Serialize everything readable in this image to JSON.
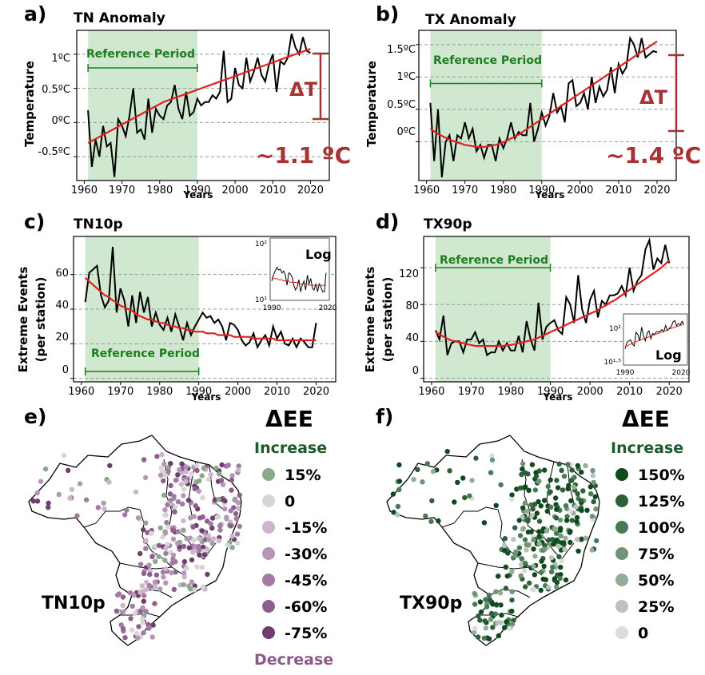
{
  "colors": {
    "red": "#e02020",
    "dark_red": "#a83232",
    "green_band": "#cfe8cf",
    "green_text": "#1e7d1e",
    "dark_green": "#1c5a2c",
    "purple_text": "#8a5a8a"
  },
  "panels": [
    {
      "id": "a",
      "label": "a)",
      "title": "TN Anomaly",
      "ylabel": "Temperature",
      "xlabel": "Years",
      "yticks": [
        "1ºC",
        "0.5ºC",
        "0ºC",
        "-0.5ºC"
      ],
      "xticks": [
        "1960",
        "1970",
        "1980",
        "1990",
        "2000",
        "2010",
        "2020"
      ],
      "ref_label": "Reference Period",
      "delta_label": "ΔT",
      "change_label": "~1.1 ºC"
    },
    {
      "id": "b",
      "label": "b)",
      "title": "TX Anomaly",
      "ylabel": "Temperature",
      "xlabel": "Years",
      "yticks": [
        "1.5ºC",
        "1ºC",
        "0.5ºC",
        "0ºC"
      ],
      "xticks": [
        "1960",
        "1970",
        "1980",
        "1990",
        "2000",
        "2010",
        "2020"
      ],
      "ref_label": "Reference Period",
      "delta_label": "ΔT",
      "change_label": "~1.4 ºC"
    },
    {
      "id": "c",
      "label": "c)",
      "title": "TN10p",
      "ylabel1": "Extreme Events",
      "ylabel2": "(per station)",
      "xlabel": "Years",
      "yticks": [
        "60",
        "40",
        "20",
        "0"
      ],
      "xticks": [
        "1960",
        "1970",
        "1980",
        "1990",
        "2000",
        "2010",
        "2020"
      ],
      "ref_label": "Reference Period",
      "inset_label": "Log",
      "inset_yticks": [
        "10²",
        "10¹"
      ],
      "inset_xticks": [
        "1990",
        "2020"
      ]
    },
    {
      "id": "d",
      "label": "d)",
      "title": "TX90p",
      "ylabel1": "Extreme Events",
      "ylabel2": "(per station)",
      "xlabel": "Years",
      "yticks": [
        "120",
        "80",
        "40",
        "0"
      ],
      "xticks": [
        "1960",
        "1970",
        "1980",
        "1990",
        "2000",
        "2010",
        "2020"
      ],
      "ref_label": "Reference Period",
      "inset_label": "Log",
      "inset_yticks": [
        "10²",
        "10¹·⁵"
      ],
      "inset_xticks": [
        "1990",
        "2020"
      ]
    }
  ],
  "maps": [
    {
      "id": "e",
      "label": "e)",
      "name": "TN10p",
      "legend_title": "ΔEE",
      "increase_label": "Increase",
      "decrease_label": "Decrease",
      "legend": [
        {
          "label": "15%",
          "color": "#8aa88a"
        },
        {
          "label": "0",
          "color": "#d6d6d6"
        },
        {
          "label": "-15%",
          "color": "#cbb6cb"
        },
        {
          "label": "-30%",
          "color": "#b795b7"
        },
        {
          "label": "-45%",
          "color": "#a37aa3"
        },
        {
          "label": "-60%",
          "color": "#8f5e8f"
        },
        {
          "label": "-75%",
          "color": "#6e3f6e"
        }
      ]
    },
    {
      "id": "f",
      "label": "f)",
      "name": "TX90p",
      "legend_title": "ΔEE",
      "increase_label": "Increase",
      "legend": [
        {
          "label": "150%",
          "color": "#0f4a1e"
        },
        {
          "label": "125%",
          "color": "#2e5f38"
        },
        {
          "label": "100%",
          "color": "#4a7956"
        },
        {
          "label": "75%",
          "color": "#6f9477"
        },
        {
          "label": "50%",
          "color": "#93ad98"
        },
        {
          "label": "25%",
          "color": "#b8c3bb"
        },
        {
          "label": "0",
          "color": "#dcdcdc"
        }
      ]
    }
  ],
  "chart_data": [
    {
      "type": "line",
      "title": "TN Anomaly",
      "xlabel": "Years",
      "ylabel": "Temperature (ºC)",
      "xlim": [
        1958,
        2025
      ],
      "ylim": [
        -0.85,
        1.35
      ],
      "reference_period": [
        1961,
        1990
      ],
      "trend_change": 1.1,
      "x": [
        1961,
        1962,
        1963,
        1964,
        1965,
        1966,
        1967,
        1968,
        1969,
        1970,
        1971,
        1972,
        1973,
        1974,
        1975,
        1976,
        1977,
        1978,
        1979,
        1980,
        1981,
        1982,
        1983,
        1984,
        1985,
        1986,
        1987,
        1988,
        1989,
        1990,
        1991,
        1992,
        1993,
        1994,
        1995,
        1996,
        1997,
        1998,
        1999,
        2000,
        2001,
        2002,
        2003,
        2004,
        2005,
        2006,
        2007,
        2008,
        2009,
        2010,
        2011,
        2012,
        2013,
        2014,
        2015,
        2016,
        2017,
        2018,
        2019,
        2020
      ],
      "series": [
        {
          "name": "TN anomaly",
          "values": [
            0.18,
            -0.65,
            -0.25,
            -0.5,
            -0.05,
            -0.35,
            -0.3,
            -0.8,
            0.05,
            -0.05,
            -0.2,
            0.1,
            0.5,
            -0.15,
            -0.1,
            -0.25,
            0.35,
            -0.15,
            0.2,
            0.1,
            0.05,
            0.25,
            0.3,
            0.55,
            0.2,
            0.05,
            0.45,
            0.1,
            0.15,
            0.35,
            0.25,
            0.3,
            0.3,
            0.4,
            0.35,
            0.45,
            1.05,
            0.3,
            0.35,
            0.8,
            0.55,
            0.5,
            0.95,
            0.6,
            0.75,
            0.95,
            0.7,
            0.6,
            0.85,
            1.0,
            0.45,
            0.9,
            0.85,
            0.95,
            1.3,
            1.1,
            1.0,
            1.25,
            1.05,
            1.02
          ]
        },
        {
          "name": "trend",
          "values": [
            -0.3,
            -0.27,
            -0.24,
            -0.21,
            -0.18,
            -0.15,
            -0.12,
            -0.09,
            -0.06,
            -0.03,
            0.0,
            0.03,
            0.06,
            0.09,
            0.12,
            0.15,
            0.18,
            0.21,
            0.24,
            0.27,
            0.3,
            0.32,
            0.34,
            0.36,
            0.38,
            0.4,
            0.42,
            0.44,
            0.46,
            0.48,
            0.5,
            0.52,
            0.54,
            0.56,
            0.58,
            0.6,
            0.62,
            0.64,
            0.66,
            0.68,
            0.7,
            0.72,
            0.74,
            0.76,
            0.78,
            0.8,
            0.82,
            0.84,
            0.86,
            0.88,
            0.9,
            0.92,
            0.94,
            0.96,
            0.98,
            1.0,
            1.02,
            1.04,
            1.06,
            1.08
          ]
        }
      ]
    },
    {
      "type": "line",
      "title": "TX Anomaly",
      "xlabel": "Years",
      "ylabel": "Temperature (ºC)",
      "xlim": [
        1958,
        2025
      ],
      "ylim": [
        -0.6,
        1.72
      ],
      "reference_period": [
        1961,
        1990
      ],
      "trend_change": 1.4,
      "x": [
        1961,
        1962,
        1963,
        1964,
        1965,
        1966,
        1967,
        1968,
        1969,
        1970,
        1971,
        1972,
        1973,
        1974,
        1975,
        1976,
        1977,
        1978,
        1979,
        1980,
        1981,
        1982,
        1983,
        1984,
        1985,
        1986,
        1987,
        1988,
        1989,
        1990,
        1991,
        1992,
        1993,
        1994,
        1995,
        1996,
        1997,
        1998,
        1999,
        2000,
        2001,
        2002,
        2003,
        2004,
        2005,
        2006,
        2007,
        2008,
        2009,
        2010,
        2011,
        2012,
        2013,
        2014,
        2015,
        2016,
        2017,
        2018,
        2019,
        2020
      ],
      "series": [
        {
          "name": "TX anomaly",
          "values": [
            0.6,
            -0.3,
            0.5,
            -0.55,
            0.0,
            0.1,
            -0.3,
            0.1,
            0.05,
            0.3,
            0.05,
            0.2,
            -0.15,
            -0.05,
            -0.25,
            -0.05,
            -0.05,
            -0.3,
            0.05,
            -0.1,
            0.05,
            0.3,
            0.05,
            0.15,
            0.1,
            0.1,
            0.6,
            0.0,
            0.2,
            0.45,
            0.25,
            0.4,
            0.75,
            0.45,
            0.55,
            0.3,
            0.9,
            0.95,
            0.55,
            0.6,
            0.75,
            0.5,
            1.0,
            0.6,
            0.85,
            0.7,
            0.8,
            1.15,
            0.75,
            1.2,
            1.05,
            1.15,
            1.6,
            1.5,
            1.3,
            1.6,
            1.3,
            1.35,
            1.4,
            1.38
          ],
          "_note": "black line"
        },
        {
          "name": "trend",
          "values": [
            0.2,
            0.16,
            0.12,
            0.09,
            0.06,
            0.03,
            0.01,
            -0.01,
            -0.03,
            -0.05,
            -0.06,
            -0.07,
            -0.08,
            -0.08,
            -0.08,
            -0.07,
            -0.06,
            -0.05,
            -0.03,
            -0.01,
            0.02,
            0.05,
            0.08,
            0.11,
            0.15,
            0.19,
            0.23,
            0.27,
            0.31,
            0.35,
            0.39,
            0.43,
            0.47,
            0.51,
            0.55,
            0.59,
            0.63,
            0.67,
            0.71,
            0.75,
            0.79,
            0.83,
            0.87,
            0.91,
            0.95,
            0.99,
            1.03,
            1.07,
            1.11,
            1.15,
            1.19,
            1.23,
            1.27,
            1.31,
            1.35,
            1.39,
            1.43,
            1.47,
            1.51,
            1.55
          ]
        }
      ]
    },
    {
      "type": "line",
      "title": "TN10p",
      "xlabel": "Years",
      "ylabel": "Extreme Events (per station)",
      "xlim": [
        1958,
        2025
      ],
      "ylim": [
        -2,
        82
      ],
      "reference_period": [
        1961,
        1990
      ],
      "x": [
        1961,
        1962,
        1963,
        1964,
        1965,
        1966,
        1967,
        1968,
        1969,
        1970,
        1971,
        1972,
        1973,
        1974,
        1975,
        1976,
        1977,
        1978,
        1979,
        1980,
        1981,
        1982,
        1983,
        1984,
        1985,
        1986,
        1987,
        1988,
        1989,
        1990,
        1991,
        1992,
        1993,
        1994,
        1995,
        1996,
        1997,
        1998,
        1999,
        2000,
        2001,
        2002,
        2003,
        2004,
        2005,
        2006,
        2007,
        2008,
        2009,
        2010,
        2011,
        2012,
        2013,
        2014,
        2015,
        2016,
        2017,
        2018,
        2019,
        2020
      ],
      "series": [
        {
          "name": "TN10p",
          "values": [
            44,
            61,
            63,
            65,
            48,
            41,
            45,
            76,
            38,
            52,
            45,
            30,
            48,
            32,
            50,
            38,
            47,
            30,
            38,
            31,
            28,
            35,
            27,
            37,
            30,
            22,
            32,
            25,
            30,
            34,
            38,
            35,
            36,
            32,
            34,
            30,
            22,
            32,
            31,
            28,
            22,
            19,
            21,
            26,
            18,
            22,
            25,
            19,
            30,
            23,
            27,
            20,
            19,
            23,
            18,
            23,
            21,
            18,
            18,
            32
          ]
        },
        {
          "name": "trend",
          "values": [
            58,
            56,
            54,
            52,
            50,
            48,
            47,
            45,
            44,
            42,
            41,
            40,
            39,
            37,
            36,
            35,
            34,
            34,
            33,
            32,
            32,
            31,
            30,
            30,
            29,
            29,
            28,
            28,
            27,
            27,
            27,
            26,
            26,
            26,
            25,
            25,
            25,
            25,
            24,
            24,
            24,
            24,
            24,
            23,
            23,
            23,
            23,
            23,
            23,
            22,
            22,
            22,
            22,
            22,
            22,
            22,
            22,
            22,
            22,
            22
          ]
        }
      ]
    },
    {
      "type": "line",
      "title": "TX90p",
      "xlabel": "Years",
      "ylabel": "Extreme Events (per station)",
      "xlim": [
        1958,
        2025
      ],
      "ylim": [
        -4,
        154
      ],
      "reference_period": [
        1961,
        1990
      ],
      "x": [
        1961,
        1962,
        1963,
        1964,
        1965,
        1966,
        1967,
        1968,
        1969,
        1970,
        1971,
        1972,
        1973,
        1974,
        1975,
        1976,
        1977,
        1978,
        1979,
        1980,
        1981,
        1982,
        1983,
        1984,
        1985,
        1986,
        1987,
        1988,
        1989,
        1990,
        1991,
        1992,
        1993,
        1994,
        1995,
        1996,
        1997,
        1998,
        1999,
        2000,
        2001,
        2002,
        2003,
        2004,
        2005,
        2006,
        2007,
        2008,
        2009,
        2010,
        2011,
        2012,
        2013,
        2014,
        2015,
        2016,
        2017,
        2018,
        2019,
        2020
      ],
      "series": [
        {
          "name": "TX90p",
          "values": [
            52,
            42,
            68,
            25,
            38,
            40,
            40,
            28,
            42,
            42,
            50,
            38,
            42,
            25,
            28,
            28,
            40,
            30,
            38,
            30,
            30,
            46,
            28,
            62,
            42,
            30,
            82,
            42,
            56,
            60,
            63,
            52,
            48,
            88,
            80,
            60,
            112,
            75,
            60,
            85,
            95,
            66,
            84,
            80,
            90,
            90,
            92,
            100,
            90,
            120,
            95,
            106,
            112,
            140,
            150,
            118,
            130,
            125,
            145,
            125
          ]
        },
        {
          "name": "trend",
          "values": [
            50,
            48,
            45,
            43,
            41,
            40,
            39,
            38,
            37,
            36,
            35,
            35,
            35,
            35,
            35,
            35,
            35,
            35,
            36,
            36,
            37,
            38,
            39,
            40,
            41,
            42,
            44,
            46,
            48,
            50,
            52,
            54,
            56,
            58,
            60,
            62,
            64,
            66,
            68,
            70,
            72,
            74,
            77,
            79,
            82,
            84,
            87,
            90,
            93,
            96,
            99,
            102,
            105,
            108,
            111,
            114,
            117,
            120,
            124,
            128
          ]
        }
      ]
    }
  ]
}
